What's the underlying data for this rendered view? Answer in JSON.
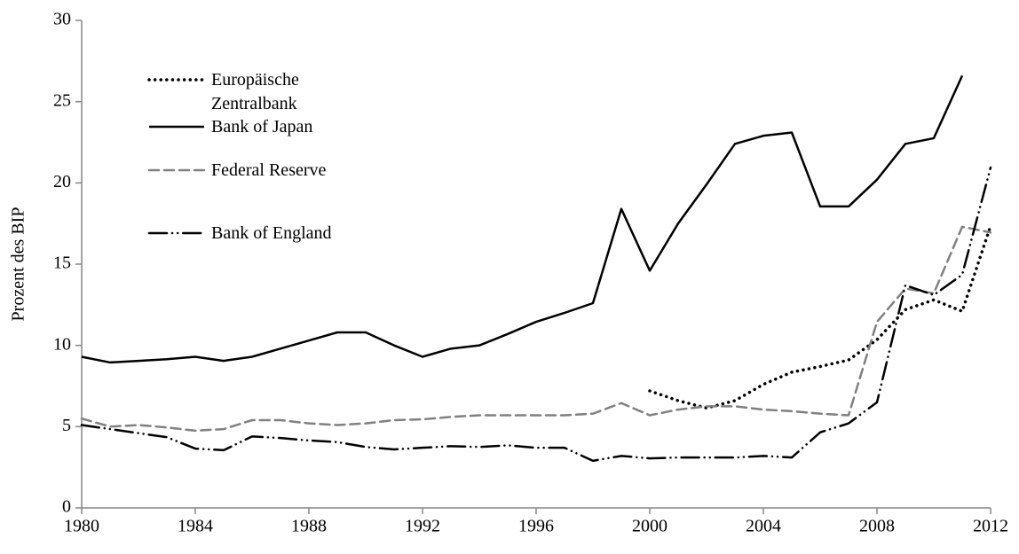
{
  "chart_data": {
    "type": "line",
    "y_label": "Prozent des BIP",
    "x": [
      1980,
      1981,
      1982,
      1983,
      1984,
      1985,
      1986,
      1987,
      1988,
      1989,
      1990,
      1991,
      1992,
      1993,
      1994,
      1995,
      1996,
      1997,
      1998,
      1999,
      2000,
      2001,
      2002,
      2003,
      2004,
      2005,
      2006,
      2007,
      2008,
      2009,
      2010,
      2011,
      2012
    ],
    "xlim": [
      1980,
      2012
    ],
    "xticks": [
      1980,
      1984,
      1988,
      1992,
      1996,
      2000,
      2004,
      2008,
      2012
    ],
    "ylim": [
      0,
      30
    ],
    "yticks": [
      0,
      5,
      10,
      15,
      20,
      25,
      30
    ],
    "series": [
      {
        "name": "Europäische Zentralbank",
        "color": "#000000",
        "linestyle": "dotted",
        "values": [
          null,
          null,
          null,
          null,
          null,
          null,
          null,
          null,
          null,
          null,
          null,
          null,
          null,
          null,
          null,
          null,
          null,
          null,
          null,
          null,
          7.2,
          6.6,
          6.15,
          6.6,
          7.6,
          8.35,
          8.7,
          9.1,
          10.35,
          12.2,
          12.8,
          12.1,
          17.35
        ]
      },
      {
        "name": "Bank of Japan",
        "color": "#000000",
        "linestyle": "solid",
        "values": [
          9.3,
          8.95,
          9.05,
          9.15,
          9.3,
          9.05,
          9.3,
          9.8,
          10.3,
          10.8,
          10.8,
          10.0,
          9.3,
          9.8,
          10.0,
          10.7,
          11.45,
          12.0,
          12.6,
          18.4,
          14.6,
          17.5,
          19.9,
          22.4,
          22.9,
          23.1,
          18.55,
          18.55,
          20.2,
          22.4,
          22.75,
          26.6,
          null
        ]
      },
      {
        "name": "Federal Reserve",
        "color": "#808080",
        "linestyle": "dashed",
        "values": [
          5.5,
          5.0,
          5.1,
          4.95,
          4.75,
          4.85,
          5.4,
          5.4,
          5.2,
          5.1,
          5.2,
          5.4,
          5.45,
          5.6,
          5.7,
          5.7,
          5.7,
          5.7,
          5.8,
          6.45,
          5.7,
          6.05,
          6.25,
          6.25,
          6.05,
          5.95,
          5.8,
          5.7,
          11.45,
          13.5,
          13.2,
          17.3,
          16.95
        ]
      },
      {
        "name": "Bank of England",
        "color": "#000000",
        "linestyle": "dashdotdot",
        "values": [
          5.1,
          4.85,
          4.6,
          4.35,
          3.65,
          3.55,
          4.4,
          4.3,
          4.15,
          4.05,
          3.75,
          3.6,
          3.7,
          3.8,
          3.75,
          3.85,
          3.7,
          3.7,
          2.9,
          3.2,
          3.05,
          3.1,
          3.1,
          3.1,
          3.2,
          3.1,
          4.65,
          5.2,
          6.5,
          13.7,
          13.1,
          14.35,
          20.95
        ]
      }
    ]
  }
}
